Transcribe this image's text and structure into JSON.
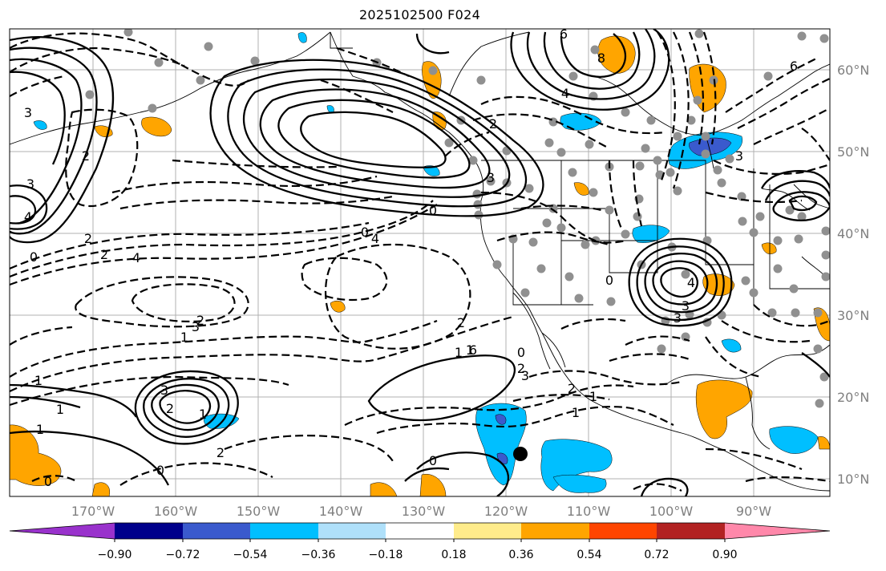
{
  "title": "2025102500 F024",
  "map": {
    "lon_labels": [
      "170°W",
      "160°W",
      "150°W",
      "140°W",
      "130°W",
      "120°W",
      "110°W",
      "100°W",
      "90°W"
    ],
    "lat_labels": [
      "60°N",
      "50°N",
      "40°N",
      "30°N",
      "20°N",
      "10°N"
    ],
    "contour_labels": [
      "0",
      "2",
      "3",
      "3",
      "4",
      "0",
      "1",
      "2",
      "4",
      "3",
      "3",
      "1",
      "1",
      "2",
      "1",
      "2",
      "0",
      "0",
      "1",
      "2",
      "6",
      "4",
      "3",
      "0",
      "1",
      "0",
      "2",
      "3",
      "1",
      "2",
      "1",
      "1",
      "2",
      "0",
      "0",
      "2",
      "4",
      "3",
      "3",
      "6",
      "4",
      "8",
      "6",
      "2",
      "3"
    ]
  },
  "colorbar": {
    "ticks": [
      "−0.90",
      "−0.72",
      "−0.54",
      "−0.36",
      "−0.18",
      "0.18",
      "0.36",
      "0.54",
      "0.72",
      "0.90"
    ],
    "colors": [
      "#9932cc",
      "#00008b",
      "#3a5acd",
      "#00bfff",
      "#afe0fa",
      "#ffffff",
      "#ffec8b",
      "#ffa500",
      "#ff4500",
      "#b22222",
      "#ff88aa"
    ]
  }
}
